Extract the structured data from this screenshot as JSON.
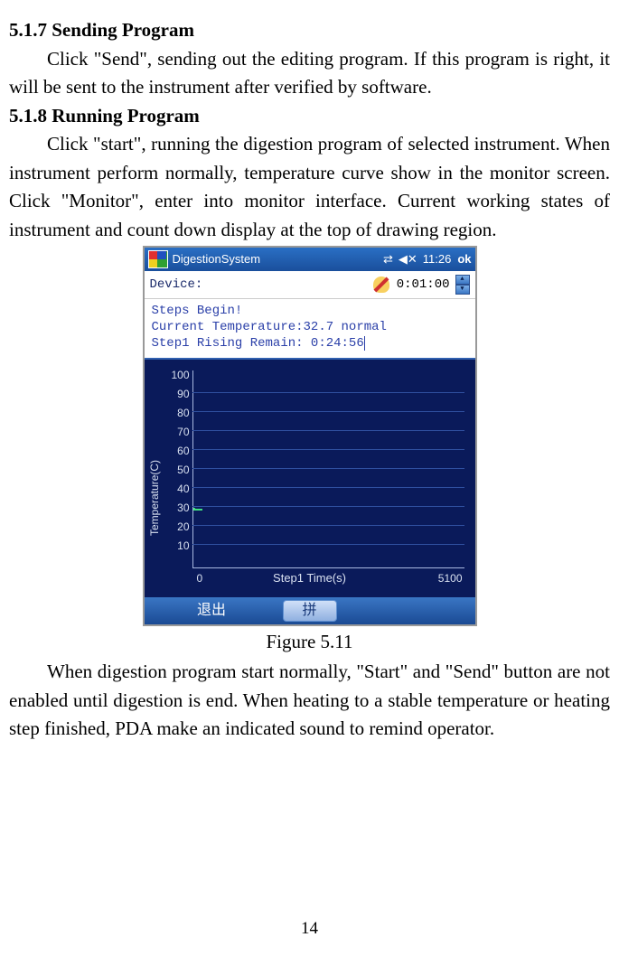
{
  "sections": {
    "s517": {
      "heading": "5.1.7 Sending Program",
      "body": "Click \"Send\", sending out the editing program. If this program is right, it will be sent to the instrument after verified by software."
    },
    "s518": {
      "heading": "5.1.8 Running Program",
      "body": "Click \"start\", running the digestion program of selected instrument. When instrument perform normally, temperature curve show in the monitor screen. Click \"Monitor\", enter into monitor interface. Current working states of instrument and count down display at the top of drawing region."
    },
    "after_figure": "When digestion program start normally, \"Start\" and \"Send\" button are not enabled until digestion is end. When heating to a stable temperature or heating step finished, PDA make an indicated sound to remind operator."
  },
  "figure_caption": "Figure 5.11",
  "page_number": "14",
  "pda": {
    "title": "DigestionSystem",
    "time": "11:26",
    "ok": "ok",
    "device_label": "Device:",
    "timer": "0:01:00",
    "status": {
      "line1": "Steps Begin!",
      "line2": "Current Temperature:32.7 normal",
      "line3": "Step1 Rising Remain: 0:24:56"
    },
    "chart": {
      "y_label": "Temperature(C)",
      "y_ticks": [
        "100",
        "90",
        "80",
        "70",
        "60",
        "50",
        "40",
        "30",
        "20",
        "10"
      ],
      "y_tick_spacing": 21,
      "y_top": 8,
      "ylim": [
        0,
        100
      ],
      "x_label": "Step1 Time(s)",
      "x_min": "0",
      "x_max": "5100",
      "background_color": "#0a1a5a",
      "gridline_color": "#3050a0",
      "axis_color": "#a8b8e0",
      "text_color": "#d8e0f0",
      "curve_color": "#40e080"
    },
    "bottom_bar": {
      "left": "退出",
      "mid": "拼"
    }
  }
}
